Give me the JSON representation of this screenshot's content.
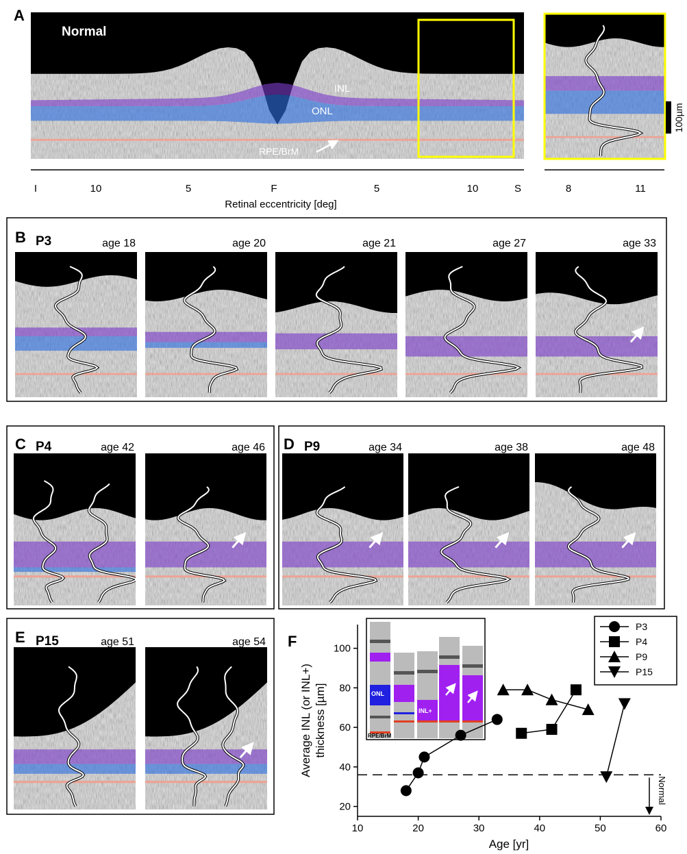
{
  "panel_a": {
    "label": "A",
    "normal": "Normal",
    "inl": "INL",
    "onl": "ONL",
    "rpe": "RPE/BrM",
    "ticks": [
      "I",
      "10",
      "5",
      "F",
      "5",
      "10",
      "S"
    ],
    "inset_ticks": [
      "8",
      "11"
    ],
    "axis_title": "Retinal eccentricity [deg]",
    "scale_bar": "100µm"
  },
  "panel_b": {
    "label": "B",
    "patient": "P3",
    "ages": [
      "age 18",
      "age 20",
      "age 21",
      "age 27",
      "age 33"
    ]
  },
  "panel_c": {
    "label": "C",
    "patient": "P4",
    "ages": [
      "age 42",
      "age 46"
    ]
  },
  "panel_d": {
    "label": "D",
    "patient": "P9",
    "ages": [
      "age 34",
      "age 38",
      "age 48"
    ]
  },
  "panel_e": {
    "label": "E",
    "patient": "P15",
    "ages": [
      "age 51",
      "age 54"
    ]
  },
  "chart_data": {
    "type": "line",
    "panel_label": "F",
    "xlabel": "Age [yr]",
    "ylabel": [
      "Average INL (or INL+)",
      "thickness [µm]"
    ],
    "xlim": [
      10,
      60
    ],
    "xticks": [
      10,
      20,
      30,
      40,
      50,
      60
    ],
    "ylim": [
      15,
      112
    ],
    "yticks": [
      20,
      40,
      60,
      80,
      100
    ],
    "series": [
      {
        "name": "P3",
        "color": "#000000",
        "marker": "circle",
        "x": [
          18,
          20,
          21,
          27,
          33
        ],
        "values": [
          28,
          37,
          45,
          56,
          64
        ]
      },
      {
        "name": "P4",
        "color": "#000000",
        "marker": "square",
        "x": [
          37,
          42,
          46
        ],
        "values": [
          57,
          59,
          79
        ]
      },
      {
        "name": "P9",
        "color": "#000000",
        "marker": "triangle",
        "x": [
          34,
          38,
          42,
          48
        ],
        "values": [
          79,
          79,
          74,
          69
        ]
      },
      {
        "name": "P15",
        "color": "#000000",
        "marker": "triangle-down",
        "x": [
          51,
          54
        ],
        "values": [
          35,
          72
        ]
      }
    ],
    "reference_line": {
      "value": 36,
      "label": "Normal"
    },
    "inset_labels": [
      "ONL",
      "INL+",
      "RPE/BrM"
    ],
    "legend": "upper right"
  }
}
